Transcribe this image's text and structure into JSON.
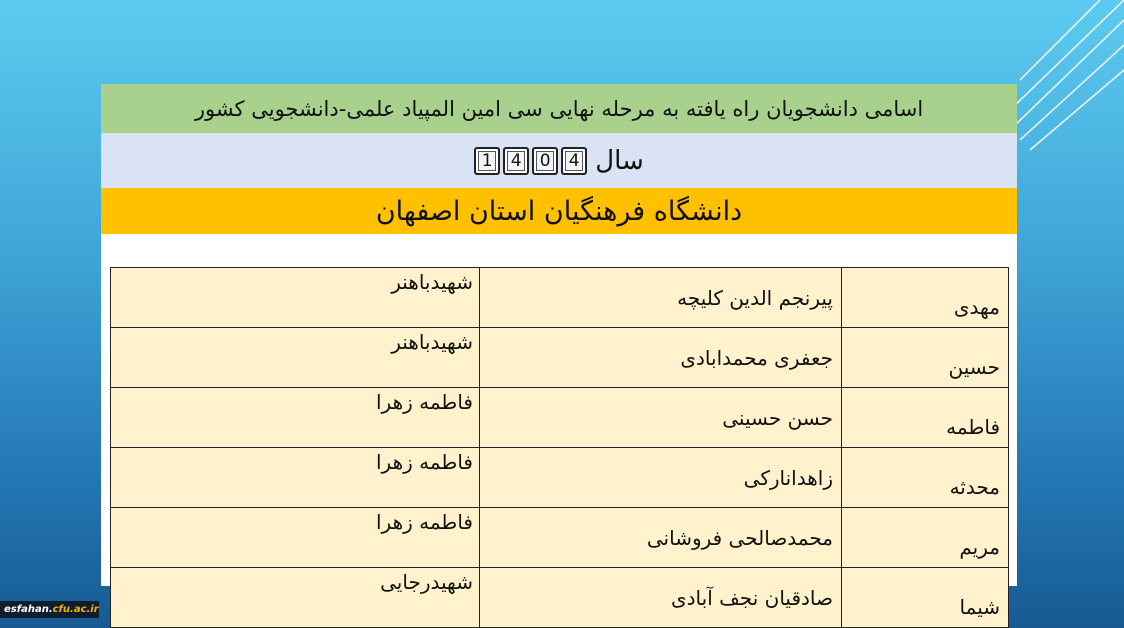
{
  "header": {
    "title": "اسامی دانشجویان راه یافته به مرحله نهایی سی امین المپیاد علمی-دانشجویی کشور",
    "year_label": "سال",
    "year_digits": [
      "1",
      "4",
      "0",
      "4"
    ],
    "university": "دانشگاه فرهنگیان استان اصفهان"
  },
  "table": {
    "rows": [
      {
        "first": "مهدی",
        "last": "پیرنجم الدین کلیچه",
        "campus": "شهیدباهنر"
      },
      {
        "first": "حسین",
        "last": "جعفری محمدابادی",
        "campus": "شهیدباهنر"
      },
      {
        "first": "فاطمه",
        "last": "حسن حسینی",
        "campus": "فاطمه زهرا"
      },
      {
        "first": "محدثه",
        "last": "زاهدانارکی",
        "campus": "فاطمه زهرا"
      },
      {
        "first": "مریم",
        "last": "محمدصالحی فروشانی",
        "campus": "فاطمه زهرا"
      },
      {
        "first": "شیما",
        "last": "صادقیان نجف آبادی",
        "campus": "شهیدرجایی"
      }
    ]
  },
  "footer": {
    "logo_main": "esfahan.",
    "logo_accent": "cfu.ac.ir"
  }
}
